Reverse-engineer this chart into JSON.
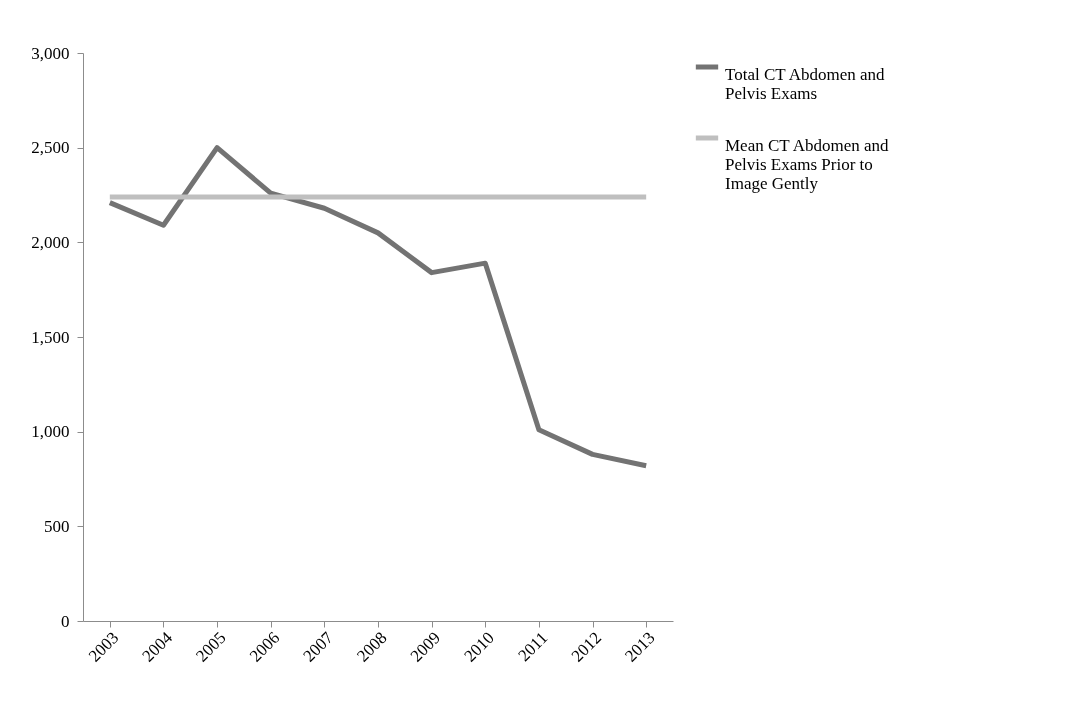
{
  "chart_data": {
    "type": "line",
    "categories": [
      "2003",
      "2004",
      "2005",
      "2006",
      "2007",
      "2008",
      "2009",
      "2010",
      "2011",
      "2012",
      "2013"
    ],
    "series": [
      {
        "name": "Total CT Abdomen and Pelvis Exams",
        "color": "#737373",
        "values": [
          2210,
          2090,
          2500,
          2260,
          2180,
          2050,
          1840,
          1890,
          1010,
          880,
          820
        ]
      },
      {
        "name": "Mean CT Abdomen and Pelvis Exams Prior to Image Gently",
        "color": "#bfbfbf",
        "values": [
          2240,
          2240,
          2240,
          2240,
          2240,
          2240,
          2240,
          2240,
          2240,
          2240,
          2240
        ]
      }
    ],
    "ylim": [
      0,
      3000
    ],
    "yticks": [
      0,
      500,
      {
        "value": 1000,
        "label": "1,000"
      },
      {
        "value": 1500,
        "label": "1,500"
      },
      {
        "value": 2000,
        "label": "2,000"
      },
      {
        "value": 2500,
        "label": "2,500"
      },
      {
        "value": 3000,
        "label": "3,000"
      }
    ],
    "grid": false,
    "legend": "right",
    "marker": "none",
    "line_style": "solid"
  }
}
